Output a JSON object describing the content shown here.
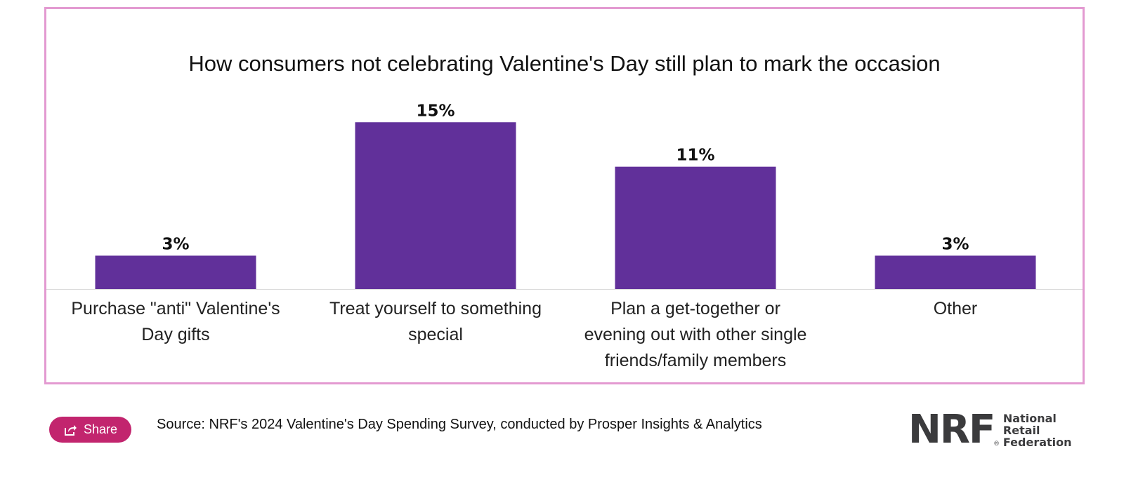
{
  "chart_data": {
    "type": "bar",
    "title": "How consumers not celebrating Valentine's Day still plan to mark the occasion",
    "categories": [
      [
        "Purchase \"anti\" Valentine's",
        "Day gifts"
      ],
      [
        "Treat yourself to something",
        "special"
      ],
      [
        "Plan a get-together or",
        "evening out with other single",
        "friends/family members"
      ],
      [
        "Other"
      ]
    ],
    "values": [
      3,
      15,
      11,
      3
    ],
    "value_labels": [
      "3%",
      "15%",
      "11%",
      "3%"
    ],
    "unit": "%",
    "ylim": [
      0,
      17
    ],
    "grid": false,
    "bar_color": "#61309a",
    "frame_color": "#e39ad1"
  },
  "share": {
    "label": "Share",
    "icon": "share-icon",
    "color": "#c2256e"
  },
  "source": "Source: NRF's 2024 Valentine's Day Spending Survey, conducted by Prosper Insights & Analytics",
  "logo": {
    "mark": "NRF",
    "reg": "®",
    "lines": [
      "National",
      "Retail",
      "Federation"
    ]
  }
}
